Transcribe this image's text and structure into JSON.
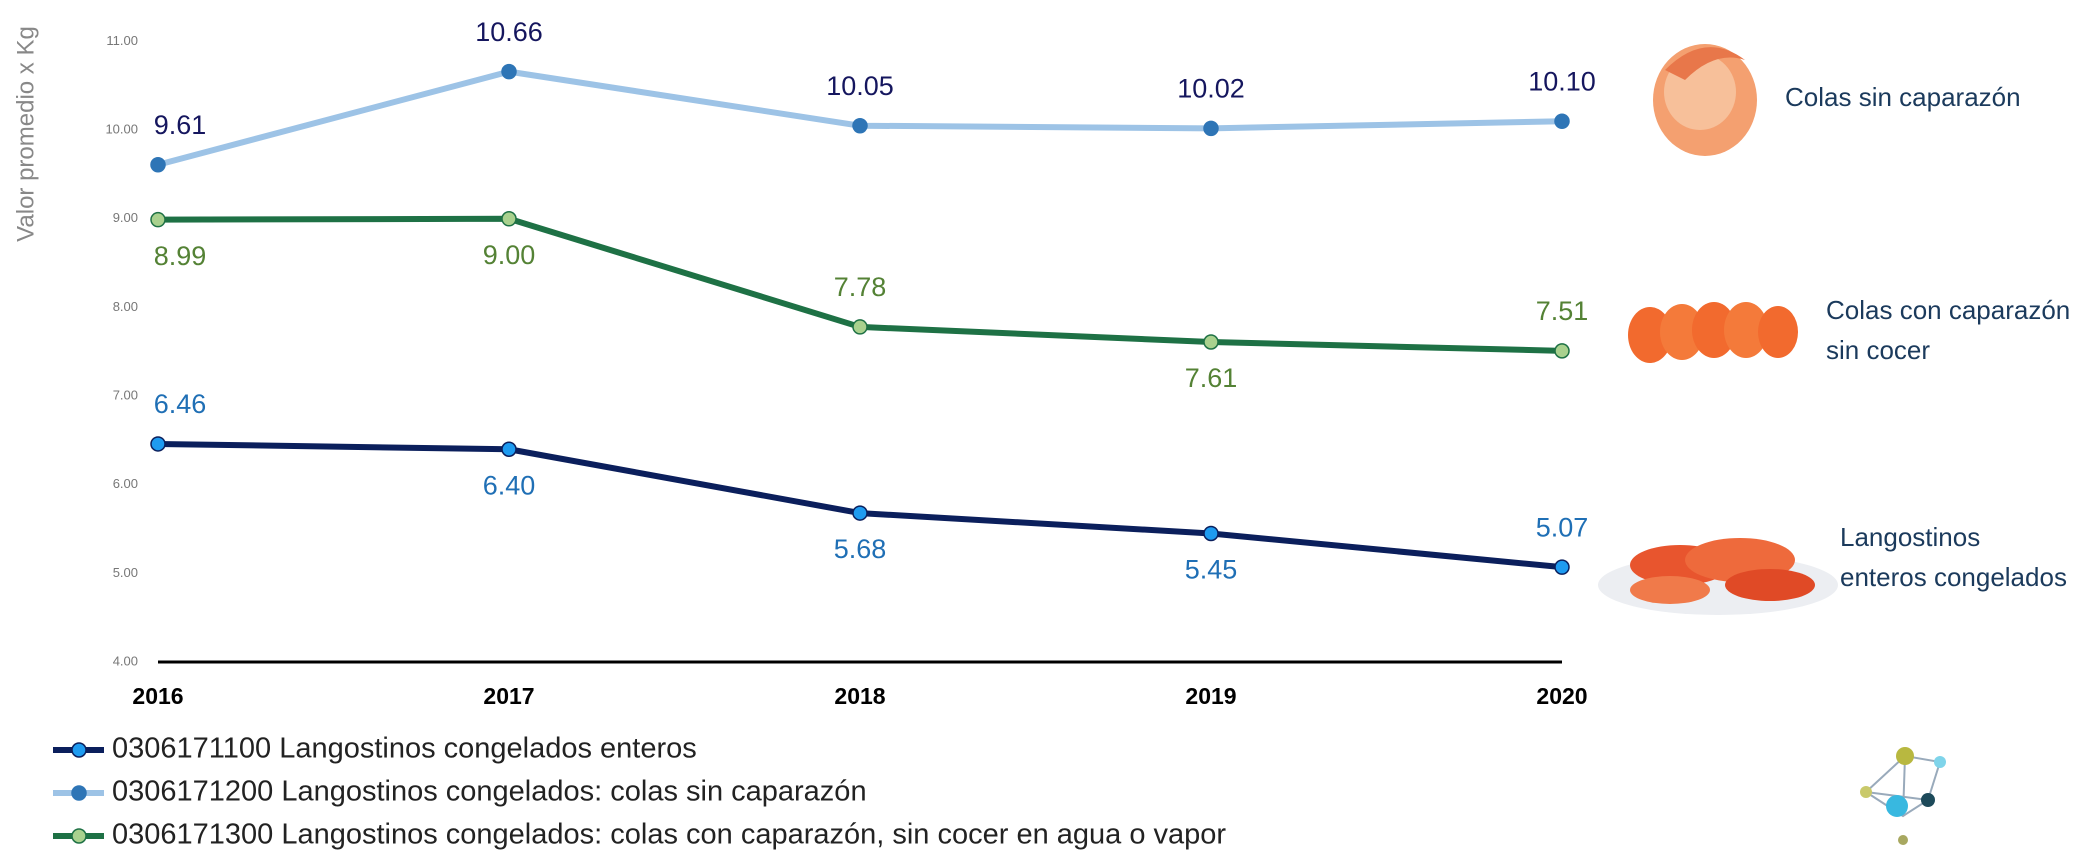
{
  "chart_data": {
    "type": "line",
    "ylabel": "Valor promedio x Kg",
    "categories": [
      "2016",
      "2017",
      "2018",
      "2019",
      "2020"
    ],
    "ylim": [
      4,
      11
    ],
    "yticks": [
      {
        "value": 4,
        "label": "4.00"
      },
      {
        "value": 5,
        "label": "5.00"
      },
      {
        "value": 6,
        "label": "6.00"
      },
      {
        "value": 7,
        "label": "7.00"
      },
      {
        "value": 8,
        "label": "8.00"
      },
      {
        "value": 9,
        "label": "9.00"
      },
      {
        "value": 10,
        "label": "10.00"
      },
      {
        "value": 11,
        "label": "11.00"
      }
    ],
    "series": [
      {
        "name": "0306171100 Langostinos congelados enteros",
        "color": "#0b1f5c",
        "marker_color": "#1e9bf0",
        "label_color": "#1f6fb5",
        "values": [
          6.46,
          6.4,
          5.68,
          5.45,
          5.07
        ],
        "value_labels": [
          "6.46",
          "6.40",
          "5.68",
          "5.45",
          "5.07"
        ]
      },
      {
        "name": "0306171200 Langostinos congelados: colas sin caparazón",
        "color": "#9dc3e6",
        "marker_color": "#2e75b6",
        "label_color": "#15165e",
        "values": [
          9.61,
          10.66,
          10.05,
          10.02,
          10.1
        ],
        "value_labels": [
          "9.61",
          "10.66",
          "10.05",
          "10.02",
          "10.10"
        ]
      },
      {
        "name": "0306171300 Langostinos congelados: colas con caparazón, sin cocer en agua o vapor",
        "color": "#1e7145",
        "marker_color": "#a9d18e",
        "label_color": "#548235",
        "values": [
          8.99,
          9.0,
          7.78,
          7.61,
          7.51
        ],
        "value_labels": [
          "8.99",
          "9.00",
          "7.78",
          "7.61",
          "7.51"
        ]
      }
    ],
    "annotations": [
      {
        "lines": [
          "Colas sin caparazón"
        ]
      },
      {
        "lines": [
          "Colas con caparazón",
          "sin cocer"
        ]
      },
      {
        "lines": [
          "Langostinos",
          "enteros congelados"
        ]
      }
    ]
  }
}
